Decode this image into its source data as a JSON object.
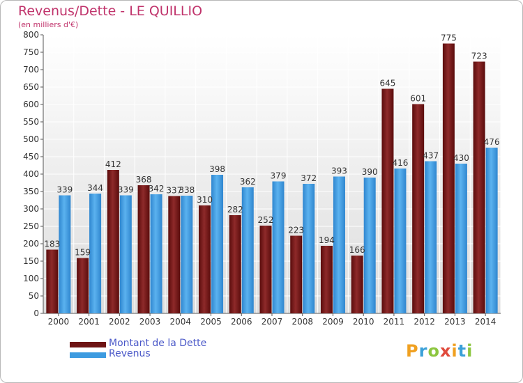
{
  "title": "Revenus/Dette - LE QUILLIO",
  "subtitle": "(en milliers d'€)",
  "chart_data": {
    "type": "bar",
    "categories": [
      "2000",
      "2001",
      "2002",
      "2003",
      "2004",
      "2005",
      "2006",
      "2007",
      "2008",
      "2009",
      "2010",
      "2011",
      "2012",
      "2013",
      "2014"
    ],
    "series": [
      {
        "name": "Montant de la Dette",
        "color": "#7a1c1c",
        "values": [
          183,
          159,
          412,
          368,
          337,
          310,
          282,
          252,
          223,
          194,
          166,
          645,
          601,
          775,
          723
        ]
      },
      {
        "name": "Revenus",
        "color": "#4aa3e6",
        "values": [
          339,
          344,
          339,
          342,
          338,
          398,
          362,
          379,
          372,
          393,
          390,
          416,
          437,
          430,
          476
        ]
      }
    ],
    "ylim": [
      0,
      800
    ],
    "yticks": [
      0,
      50,
      100,
      150,
      200,
      250,
      300,
      350,
      400,
      450,
      500,
      550,
      600,
      650,
      700,
      750,
      800
    ],
    "grid": true,
    "legend": "bottom-left"
  },
  "legend": {
    "debt_label": "Montant de la Dette",
    "revenue_label": "Revenus"
  },
  "logo": {
    "letters": [
      "P",
      "r",
      "o",
      "x",
      "i",
      "t",
      "i"
    ],
    "colors": [
      "#f0a020",
      "#3aa0d8",
      "#8cc63f",
      "#e04a3c",
      "#f0a020",
      "#3aa0d8",
      "#8cc63f"
    ]
  }
}
